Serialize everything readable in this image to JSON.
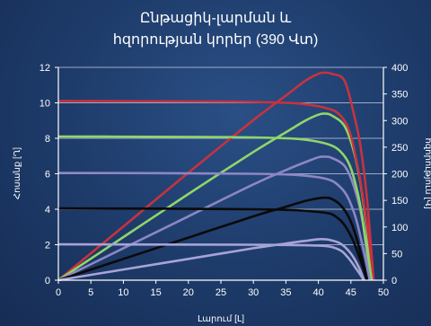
{
  "chart_data": {
    "type": "line",
    "title_lines": [
      "Ընթացիկ-լարման և",
      "հզորության կորեր (390 Վտ)"
    ],
    "xlabel": "Լարում [Լ]",
    "ylabel_left": "Հոսանք [Ղ]",
    "ylabel_right": "հզորություն [Վ]",
    "xlim": [
      0,
      50
    ],
    "ylim_left": [
      0,
      12
    ],
    "ylim_right": [
      0,
      400
    ],
    "x_ticks": [
      "0",
      "5",
      "10",
      "15",
      "20",
      "25",
      "30",
      "35",
      "40",
      "45",
      "50"
    ],
    "y_left_ticks": [
      "0",
      "2",
      "4",
      "6",
      "8",
      "10",
      "12"
    ],
    "y_right_ticks": [
      "0",
      "50",
      "100",
      "150",
      "200",
      "250",
      "300",
      "350",
      "400"
    ],
    "iv_series": [
      {
        "color": "#c8323e",
        "points": [
          [
            0,
            10.1
          ],
          [
            30,
            10.05
          ],
          [
            40,
            9.8
          ],
          [
            44,
            9.0
          ],
          [
            46,
            6.5
          ],
          [
            47.5,
            3.0
          ],
          [
            48.5,
            0
          ]
        ]
      },
      {
        "color": "#8fd66a",
        "points": [
          [
            0,
            8.1
          ],
          [
            30,
            8.05
          ],
          [
            40,
            7.8
          ],
          [
            44,
            7.0
          ],
          [
            46,
            5.0
          ],
          [
            47.3,
            2.2
          ],
          [
            48.2,
            0
          ]
        ]
      },
      {
        "color": "#8d86c4",
        "points": [
          [
            0,
            6.05
          ],
          [
            30,
            6.0
          ],
          [
            40,
            5.8
          ],
          [
            43.5,
            5.2
          ],
          [
            45.5,
            3.8
          ],
          [
            47,
            1.6
          ],
          [
            47.9,
            0
          ]
        ]
      },
      {
        "color": "#0a0a0a",
        "points": [
          [
            0,
            4.05
          ],
          [
            30,
            4.0
          ],
          [
            40,
            3.85
          ],
          [
            43,
            3.5
          ],
          [
            45,
            2.5
          ],
          [
            46.5,
            1.1
          ],
          [
            47.5,
            0
          ]
        ]
      },
      {
        "color": "#a7a3d6",
        "points": [
          [
            0,
            2.02
          ],
          [
            30,
            2.0
          ],
          [
            40,
            1.95
          ],
          [
            43,
            1.75
          ],
          [
            44.5,
            1.3
          ],
          [
            46,
            0.55
          ],
          [
            47,
            0
          ]
        ]
      }
    ],
    "power_series": [
      {
        "color": "#c8323e",
        "points": [
          [
            0,
            0
          ],
          [
            10,
            101
          ],
          [
            20,
            202
          ],
          [
            30,
            301
          ],
          [
            35,
            347
          ],
          [
            38,
            375
          ],
          [
            40,
            388
          ],
          [
            41,
            390
          ],
          [
            42,
            388
          ],
          [
            44,
            375
          ],
          [
            45.5,
            310
          ],
          [
            46.5,
            250
          ],
          [
            47.5,
            150
          ],
          [
            48.5,
            0
          ]
        ]
      },
      {
        "color": "#8fd66a",
        "points": [
          [
            0,
            0
          ],
          [
            10,
            81
          ],
          [
            20,
            162
          ],
          [
            30,
            241
          ],
          [
            35,
            278
          ],
          [
            38,
            300
          ],
          [
            40,
            311
          ],
          [
            41,
            313
          ],
          [
            42,
            310
          ],
          [
            44,
            290
          ],
          [
            45.5,
            240
          ],
          [
            46.5,
            180
          ],
          [
            47.5,
            90
          ],
          [
            48.2,
            0
          ]
        ]
      },
      {
        "color": "#8d86c4",
        "points": [
          [
            0,
            0
          ],
          [
            10,
            60
          ],
          [
            20,
            120
          ],
          [
            30,
            180
          ],
          [
            35,
            207
          ],
          [
            38,
            222
          ],
          [
            40,
            231
          ],
          [
            41,
            232
          ],
          [
            42,
            230
          ],
          [
            44,
            215
          ],
          [
            45.5,
            175
          ],
          [
            46.8,
            110
          ],
          [
            47.9,
            0
          ]
        ]
      },
      {
        "color": "#0a0a0a",
        "points": [
          [
            0,
            0
          ],
          [
            10,
            40
          ],
          [
            20,
            80
          ],
          [
            30,
            120
          ],
          [
            35,
            138
          ],
          [
            38,
            149
          ],
          [
            40,
            154
          ],
          [
            41,
            155
          ],
          [
            42,
            153
          ],
          [
            43.5,
            140
          ],
          [
            45,
            110
          ],
          [
            46.3,
            60
          ],
          [
            47.5,
            0
          ]
        ]
      },
      {
        "color": "#a7a3d6",
        "points": [
          [
            0,
            0
          ],
          [
            10,
            20
          ],
          [
            20,
            40
          ],
          [
            30,
            60
          ],
          [
            35,
            69
          ],
          [
            38,
            74
          ],
          [
            40,
            77
          ],
          [
            41,
            77
          ],
          [
            42,
            75
          ],
          [
            43.5,
            68
          ],
          [
            45,
            50
          ],
          [
            46.2,
            25
          ],
          [
            47,
            0
          ]
        ]
      }
    ],
    "grid_colors": {
      "horizontal": "#c8cde0",
      "axis": "#ffffff"
    }
  }
}
